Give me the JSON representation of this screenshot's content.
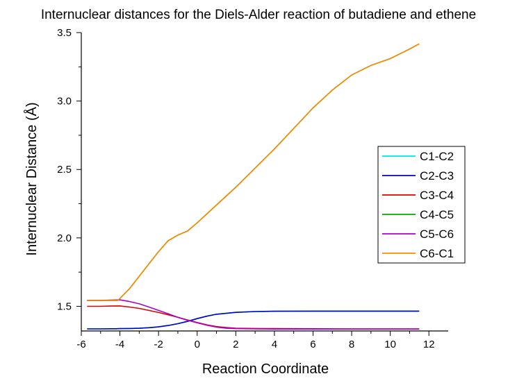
{
  "chart_data": {
    "type": "line",
    "title": "Internuclear distances for the Diels-Alder reaction of butadiene and ethene",
    "xlabel": "Reaction Coordinate",
    "ylabel": "Internuclear Distance (Å)",
    "xlim": [
      -6,
      13
    ],
    "ylim": [
      1.32,
      3.5
    ],
    "xticks": [
      -6,
      -4,
      -2,
      0,
      2,
      4,
      6,
      8,
      10,
      12
    ],
    "xtick_labels": [
      "-6",
      "-4",
      "-2",
      "0",
      "2",
      "4",
      "6",
      "8",
      "10",
      "12"
    ],
    "yticks": [
      1.5,
      2.0,
      2.5,
      3.0,
      3.5
    ],
    "ytick_labels": [
      "1.5",
      "2.0",
      "2.5",
      "3.0",
      "3.5"
    ],
    "grid": false,
    "legend_position": "right",
    "series": [
      {
        "name": "C1-C2",
        "color": "#00e5e5",
        "x": [
          -5.7,
          -5.0,
          -4.5,
          -4.2,
          -4.0,
          -3.5,
          -3.0,
          -2.5,
          -2.0,
          -1.5,
          -1.0,
          -0.5,
          0.0,
          0.5,
          1.0,
          2.0,
          3.0,
          4.0,
          6.0,
          8.0,
          10.0,
          11.5
        ],
        "y": [
          1.335,
          1.335,
          1.336,
          1.336,
          1.337,
          1.338,
          1.34,
          1.344,
          1.35,
          1.36,
          1.373,
          1.39,
          1.41,
          1.428,
          1.442,
          1.456,
          1.462,
          1.464,
          1.465,
          1.465,
          1.465,
          1.465
        ]
      },
      {
        "name": "C2-C3",
        "color": "#0000cc",
        "x": [
          -5.7,
          -5.0,
          -4.5,
          -4.2,
          -4.0,
          -3.5,
          -3.0,
          -2.5,
          -2.0,
          -1.5,
          -1.0,
          -0.5,
          0.0,
          0.5,
          1.0,
          2.0,
          3.0,
          4.0,
          6.0,
          8.0,
          10.0,
          11.5
        ],
        "y": [
          1.335,
          1.335,
          1.336,
          1.336,
          1.337,
          1.338,
          1.34,
          1.344,
          1.35,
          1.36,
          1.373,
          1.39,
          1.41,
          1.428,
          1.442,
          1.456,
          1.462,
          1.464,
          1.465,
          1.465,
          1.465,
          1.465
        ]
      },
      {
        "name": "C3-C4",
        "color": "#dd0000",
        "x": [
          -5.7,
          -5.0,
          -4.5,
          -4.0,
          -3.5,
          -3.0,
          -2.5,
          -2.0,
          -1.5,
          -1.0,
          -0.5,
          0.0,
          0.5,
          1.0,
          1.5,
          2.0,
          3.0,
          4.0,
          6.0,
          8.0,
          10.0,
          11.5
        ],
        "y": [
          1.5,
          1.5,
          1.502,
          1.503,
          1.495,
          1.485,
          1.47,
          1.455,
          1.438,
          1.42,
          1.4,
          1.382,
          1.365,
          1.352,
          1.345,
          1.34,
          1.338,
          1.337,
          1.336,
          1.335,
          1.335,
          1.335
        ]
      },
      {
        "name": "C4-C5",
        "color": "#00aa00",
        "x": [
          -5.7,
          -5.0,
          -4.5,
          -4.1,
          -3.5,
          -3.0,
          -2.5,
          -2.0,
          -1.5,
          -1.0,
          -0.5,
          0.0,
          1.0,
          2.0,
          3.0,
          4.0,
          5.0,
          6.0,
          7.0,
          8.0,
          9.0,
          10.0,
          11.0,
          11.5
        ],
        "y": [
          1.543,
          1.543,
          1.543,
          1.543,
          1.63,
          1.72,
          1.81,
          1.9,
          1.98,
          2.02,
          2.05,
          2.11,
          2.24,
          2.37,
          2.51,
          2.65,
          2.8,
          2.95,
          3.08,
          3.19,
          3.26,
          3.31,
          3.38,
          3.418
        ]
      },
      {
        "name": "C5-C6",
        "color": "#aa00cc",
        "x": [
          -5.7,
          -5.0,
          -4.5,
          -4.0,
          -3.5,
          -3.0,
          -2.5,
          -2.0,
          -1.5,
          -1.0,
          -0.5,
          0.0,
          0.5,
          1.0,
          1.5,
          2.0,
          3.0,
          4.0,
          6.0,
          8.0,
          10.0,
          11.5
        ],
        "y": [
          1.543,
          1.543,
          1.545,
          1.547,
          1.535,
          1.518,
          1.495,
          1.47,
          1.445,
          1.42,
          1.398,
          1.38,
          1.362,
          1.348,
          1.34,
          1.337,
          1.335,
          1.334,
          1.334,
          1.334,
          1.334,
          1.334
        ]
      },
      {
        "name": "C6-C1",
        "color": "#ff8800",
        "x": [
          -5.7,
          -5.0,
          -4.5,
          -4.1,
          -3.5,
          -3.0,
          -2.5,
          -2.0,
          -1.5,
          -1.0,
          -0.5,
          0.0,
          1.0,
          2.0,
          3.0,
          4.0,
          5.0,
          6.0,
          7.0,
          8.0,
          9.0,
          10.0,
          11.0,
          11.5
        ],
        "y": [
          1.543,
          1.543,
          1.543,
          1.543,
          1.63,
          1.72,
          1.81,
          1.9,
          1.98,
          2.02,
          2.05,
          2.11,
          2.24,
          2.37,
          2.51,
          2.65,
          2.8,
          2.95,
          3.08,
          3.19,
          3.26,
          3.31,
          3.38,
          3.418
        ]
      }
    ]
  }
}
